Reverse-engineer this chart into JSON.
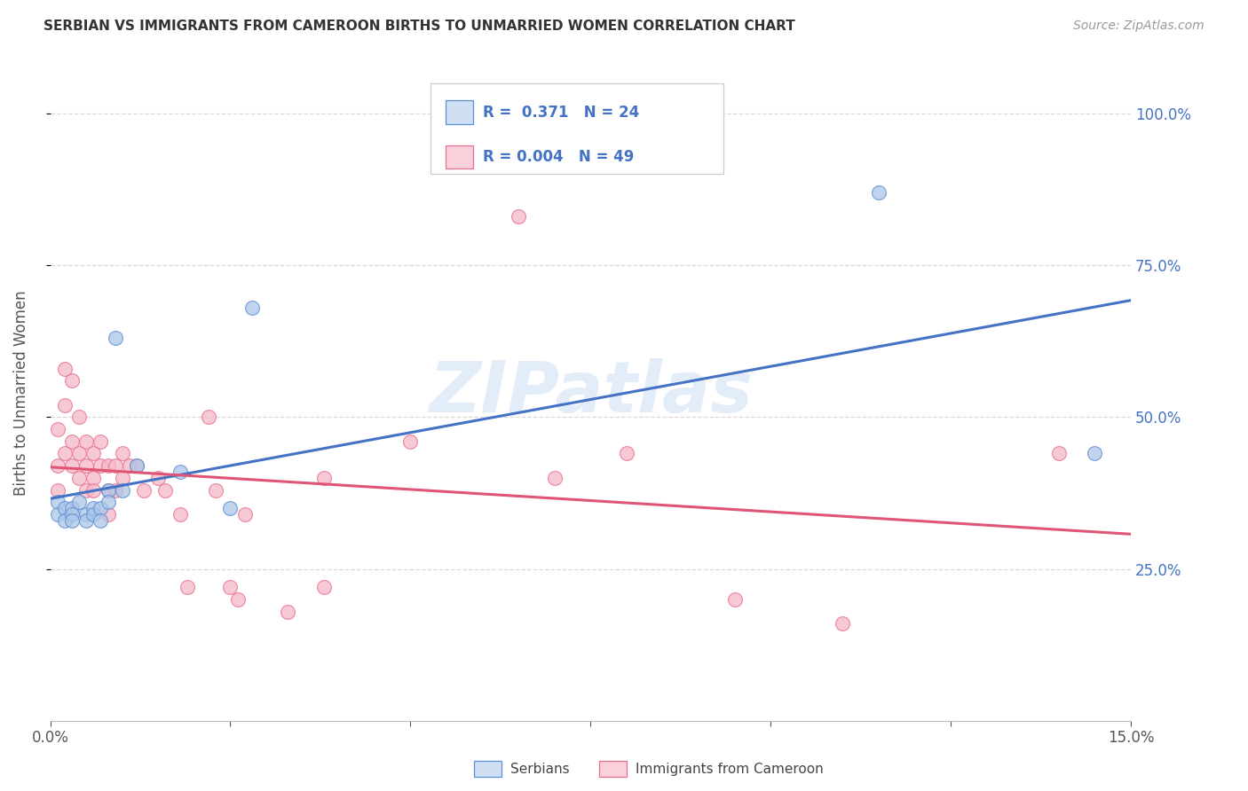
{
  "title": "SERBIAN VS IMMIGRANTS FROM CAMEROON BIRTHS TO UNMARRIED WOMEN CORRELATION CHART",
  "source": "Source: ZipAtlas.com",
  "ylabel": "Births to Unmarried Women",
  "yticks_labels": [
    "100.0%",
    "75.0%",
    "50.0%",
    "25.0%"
  ],
  "ytick_vals": [
    1.0,
    0.75,
    0.5,
    0.25
  ],
  "xlim": [
    0.0,
    0.15
  ],
  "ylim": [
    0.0,
    1.08
  ],
  "serbian_R": "0.371",
  "serbian_N": "24",
  "cameroon_R": "0.004",
  "cameroon_N": "49",
  "serbian_color": "#adc6e8",
  "cameroon_color": "#f5b8c8",
  "serbian_edge_color": "#5b8fd4",
  "cameroon_edge_color": "#e87090",
  "serbian_line_color": "#4472c4",
  "cameroon_line_color": "#e05575",
  "legend_serbian_fill": "#cfe0f5",
  "legend_cameroon_fill": "#fad0da",
  "watermark": "ZIPatlas",
  "background_color": "#ffffff",
  "grid_color": "#d8d8d8",
  "title_color": "#333333",
  "right_axis_color": "#4472c4",
  "serbian_x": [
    0.001,
    0.001,
    0.002,
    0.002,
    0.003,
    0.003,
    0.003,
    0.004,
    0.005,
    0.005,
    0.006,
    0.006,
    0.007,
    0.007,
    0.008,
    0.008,
    0.009,
    0.01,
    0.012,
    0.018,
    0.025,
    0.028,
    0.115,
    0.145
  ],
  "serbian_y": [
    0.36,
    0.34,
    0.35,
    0.33,
    0.35,
    0.34,
    0.33,
    0.36,
    0.34,
    0.33,
    0.35,
    0.34,
    0.35,
    0.33,
    0.38,
    0.36,
    0.63,
    0.38,
    0.42,
    0.41,
    0.35,
    0.68,
    0.87,
    0.44
  ],
  "cameroon_x": [
    0.001,
    0.001,
    0.001,
    0.002,
    0.002,
    0.002,
    0.003,
    0.003,
    0.003,
    0.004,
    0.004,
    0.004,
    0.005,
    0.005,
    0.005,
    0.006,
    0.006,
    0.006,
    0.007,
    0.007,
    0.008,
    0.008,
    0.008,
    0.009,
    0.009,
    0.01,
    0.01,
    0.011,
    0.012,
    0.013,
    0.015,
    0.016,
    0.018,
    0.019,
    0.022,
    0.023,
    0.025,
    0.026,
    0.027,
    0.033,
    0.038,
    0.038,
    0.05,
    0.065,
    0.07,
    0.08,
    0.095,
    0.11,
    0.14
  ],
  "cameroon_y": [
    0.38,
    0.42,
    0.48,
    0.44,
    0.52,
    0.58,
    0.46,
    0.42,
    0.56,
    0.44,
    0.5,
    0.4,
    0.46,
    0.42,
    0.38,
    0.44,
    0.4,
    0.38,
    0.46,
    0.42,
    0.42,
    0.38,
    0.34,
    0.42,
    0.38,
    0.44,
    0.4,
    0.42,
    0.42,
    0.38,
    0.4,
    0.38,
    0.34,
    0.22,
    0.5,
    0.38,
    0.22,
    0.2,
    0.34,
    0.18,
    0.4,
    0.22,
    0.46,
    0.83,
    0.4,
    0.44,
    0.2,
    0.16,
    0.44
  ]
}
